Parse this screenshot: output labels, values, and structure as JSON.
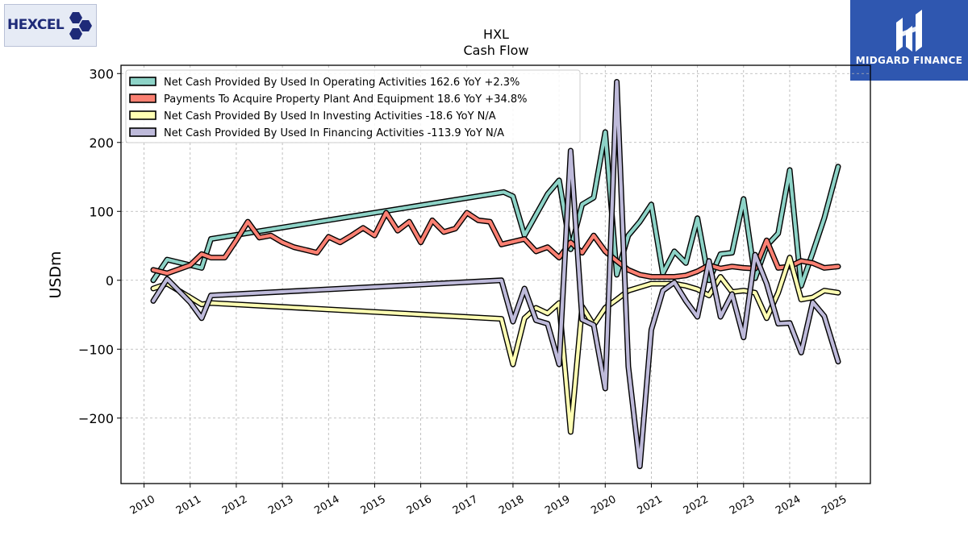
{
  "logos": {
    "left": "HEXCEL",
    "right": "MIDGARD FINANCE"
  },
  "chart_data": {
    "type": "line",
    "title": "HXL",
    "subtitle": "Cash Flow",
    "ylabel": "USDm",
    "xlabel": "",
    "ylim": [
      -295,
      312
    ],
    "xlim": [
      2009.5,
      2025.75
    ],
    "yticks": [
      300,
      200,
      100,
      0,
      -100,
      -200
    ],
    "ytick_labels": [
      "300",
      "200",
      "100",
      "0",
      "−100",
      "−200"
    ],
    "xticks": [
      2010,
      2011,
      2012,
      2013,
      2014,
      2015,
      2016,
      2017,
      2018,
      2019,
      2020,
      2021,
      2022,
      2023,
      2024,
      2025
    ],
    "xtick_labels": [
      "2010",
      "2011",
      "2012",
      "2013",
      "2014",
      "2015",
      "2016",
      "2017",
      "2018",
      "2019",
      "2020",
      "2021",
      "2022",
      "2023",
      "2024",
      "2025"
    ],
    "grid": true,
    "legend_position": "top-left",
    "series": [
      {
        "name": "Net Cash Provided By Used In Operating Activities",
        "legend": "Net Cash Provided By Used In Operating Activities  162.6 YoY +2.3%",
        "color": "#8dd3c7",
        "points": [
          [
            2010.2,
            0
          ],
          [
            2010.5,
            30
          ],
          [
            2011.0,
            22
          ],
          [
            2011.25,
            18
          ],
          [
            2011.45,
            60
          ],
          [
            2017.8,
            128
          ],
          [
            2018.0,
            122
          ],
          [
            2018.25,
            65
          ],
          [
            2018.5,
            95
          ],
          [
            2018.75,
            125
          ],
          [
            2019.0,
            145
          ],
          [
            2019.25,
            45
          ],
          [
            2019.5,
            110
          ],
          [
            2019.75,
            120
          ],
          [
            2020.0,
            215
          ],
          [
            2020.25,
            8
          ],
          [
            2020.5,
            65
          ],
          [
            2020.75,
            85
          ],
          [
            2021.0,
            110
          ],
          [
            2021.25,
            10
          ],
          [
            2021.5,
            42
          ],
          [
            2021.75,
            25
          ],
          [
            2022.0,
            90
          ],
          [
            2022.25,
            0
          ],
          [
            2022.5,
            38
          ],
          [
            2022.75,
            40
          ],
          [
            2023.0,
            118
          ],
          [
            2023.25,
            3
          ],
          [
            2023.5,
            50
          ],
          [
            2023.75,
            68
          ],
          [
            2024.0,
            160
          ],
          [
            2024.25,
            -8
          ],
          [
            2024.5,
            40
          ],
          [
            2024.75,
            90
          ],
          [
            2025.05,
            165
          ]
        ]
      },
      {
        "name": "Payments To Acquire Property Plant And Equipment",
        "legend": "Payments To Acquire Property Plant And Equipment  18.6 YoY +34.8%",
        "color": "#fb8072",
        "points": [
          [
            2010.2,
            15
          ],
          [
            2010.5,
            10
          ],
          [
            2011.0,
            22
          ],
          [
            2011.25,
            38
          ],
          [
            2011.45,
            33
          ],
          [
            2011.75,
            33
          ],
          [
            2012.0,
            58
          ],
          [
            2012.25,
            85
          ],
          [
            2012.5,
            62
          ],
          [
            2012.75,
            65
          ],
          [
            2013.0,
            55
          ],
          [
            2013.25,
            48
          ],
          [
            2013.5,
            44
          ],
          [
            2013.75,
            40
          ],
          [
            2014.0,
            63
          ],
          [
            2014.25,
            55
          ],
          [
            2014.5,
            65
          ],
          [
            2014.75,
            76
          ],
          [
            2015.0,
            65
          ],
          [
            2015.25,
            98
          ],
          [
            2015.5,
            72
          ],
          [
            2015.75,
            85
          ],
          [
            2016.0,
            55
          ],
          [
            2016.25,
            87
          ],
          [
            2016.5,
            70
          ],
          [
            2016.75,
            75
          ],
          [
            2017.0,
            98
          ],
          [
            2017.25,
            87
          ],
          [
            2017.5,
            85
          ],
          [
            2017.75,
            52
          ],
          [
            2018.0,
            56
          ],
          [
            2018.25,
            60
          ],
          [
            2018.5,
            42
          ],
          [
            2018.75,
            48
          ],
          [
            2019.0,
            33
          ],
          [
            2019.25,
            55
          ],
          [
            2019.5,
            40
          ],
          [
            2019.75,
            65
          ],
          [
            2020.0,
            42
          ],
          [
            2020.25,
            28
          ],
          [
            2020.5,
            15
          ],
          [
            2020.75,
            8
          ],
          [
            2021.0,
            5
          ],
          [
            2021.25,
            5
          ],
          [
            2021.5,
            5
          ],
          [
            2021.75,
            7
          ],
          [
            2022.0,
            13
          ],
          [
            2022.25,
            22
          ],
          [
            2022.5,
            17
          ],
          [
            2022.75,
            20
          ],
          [
            2023.0,
            18
          ],
          [
            2023.25,
            17
          ],
          [
            2023.5,
            58
          ],
          [
            2023.75,
            18
          ],
          [
            2024.0,
            20
          ],
          [
            2024.25,
            28
          ],
          [
            2024.5,
            25
          ],
          [
            2024.75,
            18
          ],
          [
            2025.05,
            20
          ]
        ]
      },
      {
        "name": "Net Cash Provided By Used In Investing Activities",
        "legend": "Net Cash Provided By Used In Investing Activities  -18.6 YoY N/A",
        "color": "#ffffb3",
        "points": [
          [
            2010.2,
            -12
          ],
          [
            2010.5,
            -5
          ],
          [
            2011.0,
            -25
          ],
          [
            2011.25,
            -35
          ],
          [
            2011.45,
            -33
          ],
          [
            2017.75,
            -56
          ],
          [
            2018.0,
            -122
          ],
          [
            2018.25,
            -55
          ],
          [
            2018.5,
            -40
          ],
          [
            2018.75,
            -48
          ],
          [
            2019.0,
            -33
          ],
          [
            2019.25,
            -220
          ],
          [
            2019.5,
            -38
          ],
          [
            2019.75,
            -65
          ],
          [
            2020.0,
            -40
          ],
          [
            2020.25,
            -28
          ],
          [
            2020.5,
            -15
          ],
          [
            2020.75,
            -10
          ],
          [
            2021.0,
            -5
          ],
          [
            2021.25,
            -5
          ],
          [
            2021.5,
            -5
          ],
          [
            2021.75,
            -8
          ],
          [
            2022.0,
            -13
          ],
          [
            2022.25,
            -22
          ],
          [
            2022.5,
            5
          ],
          [
            2022.75,
            -17
          ],
          [
            2023.0,
            -15
          ],
          [
            2023.25,
            -18
          ],
          [
            2023.5,
            -55
          ],
          [
            2023.75,
            -18
          ],
          [
            2024.0,
            33
          ],
          [
            2024.25,
            -28
          ],
          [
            2024.5,
            -25
          ],
          [
            2024.75,
            -15
          ],
          [
            2025.05,
            -18
          ]
        ]
      },
      {
        "name": "Net Cash Provided By Used In Financing Activities",
        "legend": "Net Cash Provided By Used In Financing Activities  -113.9 YoY N/A",
        "color": "#bebada",
        "points": [
          [
            2010.2,
            -30
          ],
          [
            2010.5,
            2
          ],
          [
            2011.0,
            -32
          ],
          [
            2011.25,
            -55
          ],
          [
            2011.45,
            -22
          ],
          [
            2017.75,
            0
          ],
          [
            2018.0,
            -60
          ],
          [
            2018.25,
            -12
          ],
          [
            2018.5,
            -58
          ],
          [
            2018.75,
            -63
          ],
          [
            2019.0,
            -122
          ],
          [
            2019.25,
            188
          ],
          [
            2019.5,
            -57
          ],
          [
            2019.75,
            -65
          ],
          [
            2020.0,
            -157
          ],
          [
            2020.25,
            288
          ],
          [
            2020.5,
            -125
          ],
          [
            2020.75,
            -270
          ],
          [
            2021.0,
            -72
          ],
          [
            2021.25,
            -15
          ],
          [
            2021.5,
            -3
          ],
          [
            2021.75,
            -30
          ],
          [
            2022.0,
            -53
          ],
          [
            2022.25,
            28
          ],
          [
            2022.5,
            -53
          ],
          [
            2022.75,
            -20
          ],
          [
            2023.0,
            -83
          ],
          [
            2023.25,
            37
          ],
          [
            2023.5,
            -5
          ],
          [
            2023.75,
            -63
          ],
          [
            2024.0,
            -62
          ],
          [
            2024.25,
            -105
          ],
          [
            2024.5,
            -32
          ],
          [
            2024.75,
            -52
          ],
          [
            2025.05,
            -118
          ]
        ]
      }
    ]
  }
}
